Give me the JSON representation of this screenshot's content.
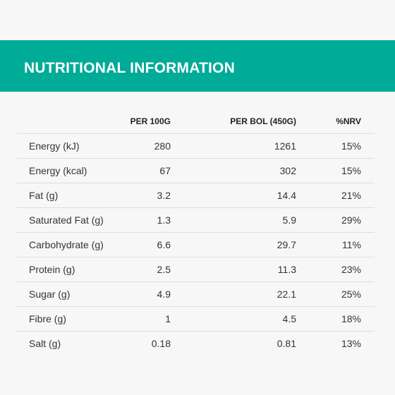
{
  "header": {
    "title": "NUTRITIONAL INFORMATION"
  },
  "table": {
    "columns": [
      "",
      "PER 100G",
      "PER BOL (450G)",
      "%NRV"
    ],
    "rows": [
      {
        "label": "Energy (kJ)",
        "per100": "280",
        "perBol": "1261",
        "nrv": "15%"
      },
      {
        "label": "Energy (kcal)",
        "per100": "67",
        "perBol": "302",
        "nrv": "15%"
      },
      {
        "label": "Fat (g)",
        "per100": "3.2",
        "perBol": "14.4",
        "nrv": "21%"
      },
      {
        "label": "Saturated Fat (g)",
        "per100": "1.3",
        "perBol": "5.9",
        "nrv": "29%"
      },
      {
        "label": "Carbohydrate (g)",
        "per100": "6.6",
        "perBol": "29.7",
        "nrv": "11%"
      },
      {
        "label": "Protein (g)",
        "per100": "2.5",
        "perBol": "11.3",
        "nrv": "23%"
      },
      {
        "label": "Sugar (g)",
        "per100": "4.9",
        "perBol": "22.1",
        "nrv": "25%"
      },
      {
        "label": "Fibre (g)",
        "per100": "1",
        "perBol": "4.5",
        "nrv": "18%"
      },
      {
        "label": "Salt (g)",
        "per100": "0.18",
        "perBol": "0.81",
        "nrv": "13%"
      }
    ]
  },
  "colors": {
    "accent": "#00ab98",
    "background": "#f7f7f7",
    "divider": "#dedede"
  }
}
